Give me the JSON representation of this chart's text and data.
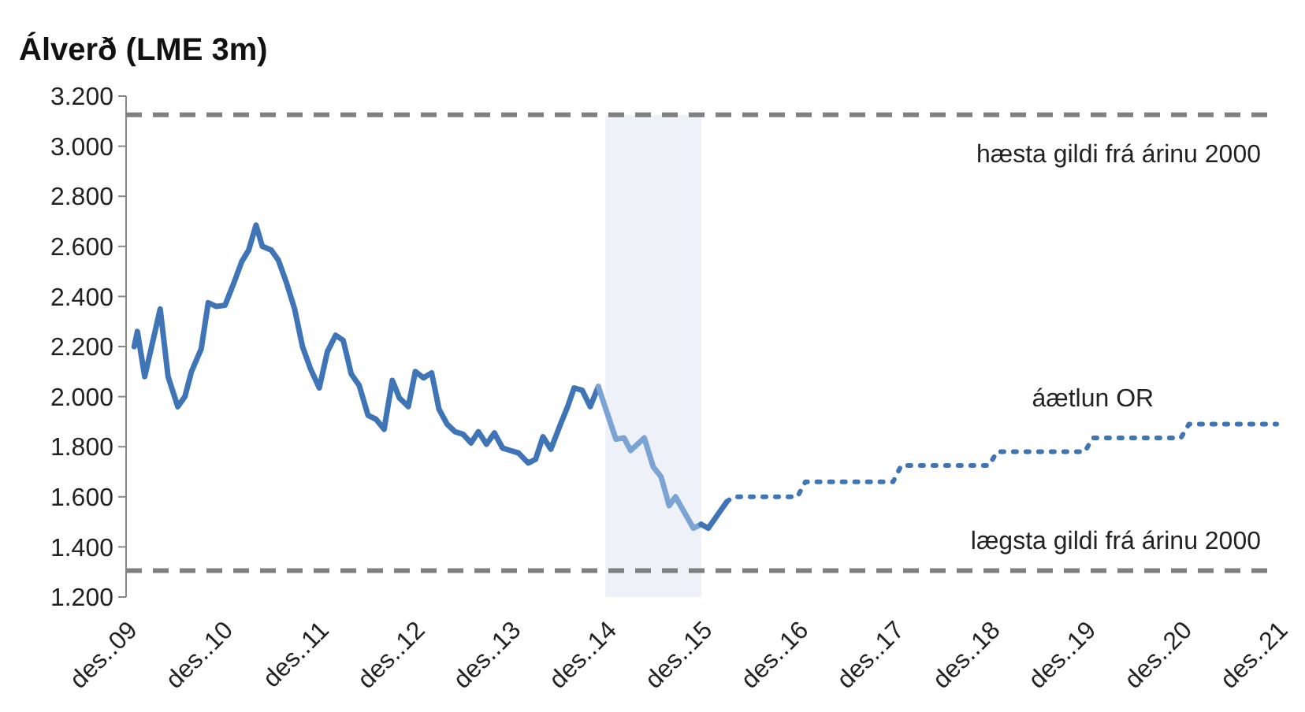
{
  "chart_data": {
    "type": "line",
    "title": "Álverð (LME 3m)",
    "xlim": [
      "2009-12-01",
      "2021-12-01"
    ],
    "xticks": [
      {
        "value": "2009-12-01",
        "label": "des..09"
      },
      {
        "value": "2010-12-01",
        "label": "des..10"
      },
      {
        "value": "2011-12-01",
        "label": "des..11"
      },
      {
        "value": "2012-12-01",
        "label": "des..12"
      },
      {
        "value": "2013-12-01",
        "label": "des..13"
      },
      {
        "value": "2014-12-01",
        "label": "des..14"
      },
      {
        "value": "2015-12-01",
        "label": "des..15"
      },
      {
        "value": "2016-12-01",
        "label": "des..16"
      },
      {
        "value": "2017-12-01",
        "label": "des..17"
      },
      {
        "value": "2018-12-01",
        "label": "des..18"
      },
      {
        "value": "2019-12-01",
        "label": "des..19"
      },
      {
        "value": "2020-12-01",
        "label": "des..20"
      },
      {
        "value": "2021-12-01",
        "label": "des..21"
      }
    ],
    "ylim": [
      1200,
      3200
    ],
    "yticks": [
      {
        "value": 1200,
        "label": "1.200"
      },
      {
        "value": 1400,
        "label": "1.400"
      },
      {
        "value": 1600,
        "label": "1.600"
      },
      {
        "value": 1800,
        "label": "1.800"
      },
      {
        "value": 2000,
        "label": "2.000"
      },
      {
        "value": 2200,
        "label": "2.200"
      },
      {
        "value": 2400,
        "label": "2.400"
      },
      {
        "value": 2600,
        "label": "2.600"
      },
      {
        "value": 2800,
        "label": "2.800"
      },
      {
        "value": 3000,
        "label": "3.000"
      },
      {
        "value": 3200,
        "label": "3.200"
      }
    ],
    "grid": false,
    "series": [
      {
        "color": "#3f75b6",
        "line_style": "solid",
        "x": [
          "2010-01-01",
          "2010-01-13",
          "2010-02-10",
          "2010-04-10",
          "2010-05-10",
          "2010-06-16",
          "2010-07-13",
          "2010-08-07",
          "2010-09-13",
          "2010-10-10",
          "2010-11-10",
          "2010-12-13",
          "2011-01-16",
          "2011-02-15",
          "2011-03-13",
          "2011-04-10",
          "2011-05-04",
          "2011-06-07",
          "2011-07-04",
          "2011-08-04",
          "2011-09-04",
          "2011-10-04",
          "2011-11-04",
          "2011-12-07",
          "2012-01-07",
          "2012-02-07",
          "2012-03-07",
          "2012-04-07",
          "2012-05-07",
          "2012-06-10",
          "2012-07-10",
          "2012-08-10",
          "2012-09-10",
          "2012-10-07",
          "2012-11-10",
          "2012-12-07",
          "2013-01-07",
          "2013-02-07",
          "2013-03-07",
          "2013-04-07",
          "2013-05-07",
          "2013-06-07",
          "2013-07-07",
          "2013-08-04",
          "2013-09-04",
          "2013-10-04",
          "2013-11-04",
          "2013-12-04",
          "2014-01-04",
          "2014-02-10",
          "2014-03-10",
          "2014-04-07",
          "2014-05-07",
          "2014-06-13",
          "2014-07-10",
          "2014-08-04",
          "2014-09-04",
          "2014-10-04",
          "2014-11-04"
        ],
        "values": [
          2200,
          2260,
          2080,
          2350,
          2080,
          1960,
          2000,
          2100,
          2190,
          2375,
          2360,
          2365,
          2455,
          2540,
          2585,
          2685,
          2600,
          2585,
          2545,
          2455,
          2350,
          2200,
          2110,
          2035,
          2180,
          2245,
          2225,
          2090,
          2045,
          1925,
          1910,
          1870,
          2065,
          1995,
          1960,
          2100,
          2075,
          2095,
          1950,
          1890,
          1860,
          1850,
          1815,
          1860,
          1810,
          1855,
          1795,
          1785,
          1775,
          1735,
          1750,
          1840,
          1790,
          1890,
          1960,
          2035,
          2025,
          1960,
          2040
        ]
      },
      {
        "color": "#7ba3d3",
        "line_style": "solid",
        "x": [
          "2014-11-04",
          "2015-01-10",
          "2015-02-10",
          "2015-03-07",
          "2015-04-28",
          "2015-06-01",
          "2015-07-01",
          "2015-08-01",
          "2015-08-25",
          "2015-11-01",
          "2015-12-01"
        ],
        "values": [
          2040,
          1830,
          1835,
          1785,
          1835,
          1720,
          1680,
          1565,
          1600,
          1475,
          1490
        ]
      },
      {
        "color": "#3f75b6",
        "line_style": "solid",
        "x": [
          "2015-12-01",
          "2015-12-28",
          "2016-03-07"
        ],
        "values": [
          1490,
          1475,
          1580
        ]
      },
      {
        "name": "áætlun OR",
        "color": "#3f75b6",
        "line_style": "dotted",
        "x": [
          "2016-03-07",
          "2016-04-01",
          "2016-12-01",
          "2017-01-01",
          "2017-12-01",
          "2018-01-01",
          "2018-12-01",
          "2019-01-01",
          "2019-12-01",
          "2020-01-01",
          "2020-12-01",
          "2021-01-01",
          "2021-12-01"
        ],
        "values": [
          1580,
          1600,
          1600,
          1660,
          1660,
          1725,
          1725,
          1780,
          1780,
          1835,
          1835,
          1890,
          1890
        ]
      }
    ],
    "ref_lines": [
      {
        "axis": "y",
        "value": 3125,
        "label": "hæsta gildi frá árinu 2000",
        "color": "#7f7f7f",
        "line_style": "dashed"
      },
      {
        "axis": "y",
        "value": 1305,
        "label": "lægsta gildi frá árinu 2000",
        "color": "#7f7f7f",
        "line_style": "dashed"
      }
    ],
    "bands": [
      {
        "axis": "x",
        "from": "2014-12-01",
        "to": "2015-12-01",
        "color": "#eef2f8"
      }
    ]
  }
}
